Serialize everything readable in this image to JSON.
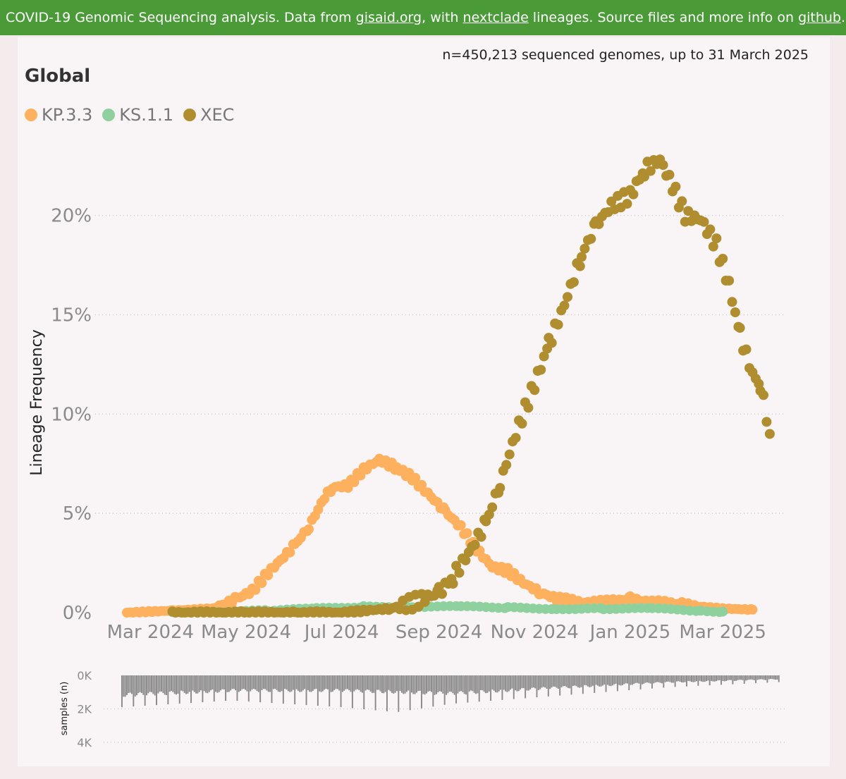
{
  "banner": {
    "prefix": "COVID-19 Genomic Sequencing analysis. Data from ",
    "link1": "gisaid.org",
    "mid1": ", with ",
    "link2": "nextclade",
    "mid2": " lineages. Source files and more info on ",
    "link3": "github",
    "suffix": "."
  },
  "subtitle": "n=450,213 sequenced genomes, up to 31 March 2025",
  "region": "Global",
  "colors": {
    "kp33": "#fdb05e",
    "ks11": "#8fd19e",
    "xec": "#b08d2e",
    "bars": "#8a8a8a"
  },
  "chart_data": [
    {
      "type": "scatter",
      "title": "Global",
      "ylabel": "Lineage Frequency",
      "xlabel": "",
      "x_range": [
        "2024-02-15",
        "2025-04-05"
      ],
      "ylim": [
        0,
        24
      ],
      "y_ticks": [
        0,
        5,
        10,
        15,
        20
      ],
      "y_tick_labels": [
        "0%",
        "5%",
        "10%",
        "15%",
        "20%"
      ],
      "x_ticks": [
        "2024-03-01",
        "2024-05-01",
        "2024-07-01",
        "2024-09-01",
        "2024-11-01",
        "2025-01-01",
        "2025-03-01"
      ],
      "x_tick_labels": [
        "Mar 2024",
        "May 2024",
        "Jul 2024",
        "Sep 2024",
        "Nov 2024",
        "Jan 2025",
        "Mar 2025"
      ],
      "legend_position": "top-left",
      "series": [
        {
          "name": "KP.3.3",
          "color": "#fdb05e",
          "points": [
            [
              "2024-02-15",
              0.0
            ],
            [
              "2024-03-15",
              0.1
            ],
            [
              "2024-04-10",
              0.2
            ],
            [
              "2024-04-25",
              0.7
            ],
            [
              "2024-05-05",
              1.1
            ],
            [
              "2024-05-15",
              2.0
            ],
            [
              "2024-05-25",
              2.8
            ],
            [
              "2024-06-01",
              3.4
            ],
            [
              "2024-06-10",
              4.3
            ],
            [
              "2024-06-20",
              5.8
            ],
            [
              "2024-06-25",
              6.3
            ],
            [
              "2024-07-05",
              6.4
            ],
            [
              "2024-07-15",
              7.2
            ],
            [
              "2024-07-25",
              7.7
            ],
            [
              "2024-08-05",
              7.3
            ],
            [
              "2024-08-15",
              6.8
            ],
            [
              "2024-08-25",
              6.0
            ],
            [
              "2024-09-05",
              5.1
            ],
            [
              "2024-09-15",
              4.3
            ],
            [
              "2024-09-25",
              3.2
            ],
            [
              "2024-10-05",
              2.3
            ],
            [
              "2024-10-15",
              2.1
            ],
            [
              "2024-10-25",
              1.5
            ],
            [
              "2024-11-05",
              1.0
            ],
            [
              "2024-11-15",
              0.7
            ],
            [
              "2024-12-01",
              0.5
            ],
            [
              "2024-12-15",
              0.5
            ],
            [
              "2025-01-01",
              0.7
            ],
            [
              "2025-01-15",
              0.5
            ],
            [
              "2025-02-01",
              0.4
            ],
            [
              "2025-02-15",
              0.3
            ],
            [
              "2025-03-01",
              0.2
            ],
            [
              "2025-03-20",
              0.15
            ]
          ]
        },
        {
          "name": "KS.1.1",
          "color": "#8fd19e",
          "points": [
            [
              "2024-03-15",
              0.0
            ],
            [
              "2024-04-15",
              0.05
            ],
            [
              "2024-05-15",
              0.1
            ],
            [
              "2024-06-15",
              0.2
            ],
            [
              "2024-07-15",
              0.3
            ],
            [
              "2024-08-15",
              0.3
            ],
            [
              "2024-09-15",
              0.3
            ],
            [
              "2024-10-15",
              0.25
            ],
            [
              "2024-11-15",
              0.2
            ],
            [
              "2024-12-15",
              0.2
            ],
            [
              "2025-01-15",
              0.2
            ],
            [
              "2025-02-15",
              0.1
            ],
            [
              "2025-03-01",
              0.05
            ]
          ]
        },
        {
          "name": "XEC",
          "color": "#b08d2e",
          "points": [
            [
              "2024-03-15",
              0.0
            ],
            [
              "2024-05-01",
              0.0
            ],
            [
              "2024-06-01",
              0.0
            ],
            [
              "2024-07-01",
              0.0
            ],
            [
              "2024-08-01",
              0.2
            ],
            [
              "2024-08-15",
              0.5
            ],
            [
              "2024-09-01",
              1.0
            ],
            [
              "2024-09-10",
              1.8
            ],
            [
              "2024-09-20",
              3.0
            ],
            [
              "2024-10-01",
              4.5
            ],
            [
              "2024-10-10",
              6.5
            ],
            [
              "2024-10-20",
              9.0
            ],
            [
              "2024-11-01",
              11.5
            ],
            [
              "2024-11-10",
              13.5
            ],
            [
              "2024-11-20",
              15.5
            ],
            [
              "2024-12-01",
              18.0
            ],
            [
              "2024-12-10",
              19.5
            ],
            [
              "2024-12-20",
              20.5
            ],
            [
              "2025-01-01",
              21.0
            ],
            [
              "2025-01-10",
              22.3
            ],
            [
              "2025-01-20",
              22.8
            ],
            [
              "2025-01-28",
              21.5
            ],
            [
              "2025-02-05",
              20.0
            ],
            [
              "2025-02-15",
              19.8
            ],
            [
              "2025-02-25",
              18.5
            ],
            [
              "2025-03-05",
              16.5
            ],
            [
              "2025-03-12",
              14.0
            ],
            [
              "2025-03-20",
              12.0
            ],
            [
              "2025-03-25",
              11.5
            ],
            [
              "2025-03-31",
              9.0
            ]
          ]
        }
      ]
    },
    {
      "type": "bar",
      "title": "",
      "ylabel": "samples (n)",
      "xlabel": "",
      "ylim": [
        0,
        4000
      ],
      "y_ticks": [
        0,
        2000,
        4000
      ],
      "y_tick_labels": [
        "0K",
        "2K",
        "4K"
      ],
      "orientation": "downward",
      "series": [
        {
          "name": "samples",
          "color": "#8a8a8a",
          "daily_baseline": [
            [
              0,
              1300
            ],
            [
              60,
              1000
            ],
            [
              120,
              1000
            ],
            [
              180,
              1200
            ],
            [
              240,
              800
            ],
            [
              300,
              450
            ],
            [
              360,
              250
            ]
          ],
          "weekly_peaks": [
            [
              0,
              1900
            ],
            [
              60,
              1500
            ],
            [
              120,
              1900
            ],
            [
              150,
              2200
            ],
            [
              180,
              1700
            ],
            [
              240,
              1200
            ],
            [
              300,
              700
            ],
            [
              360,
              400
            ]
          ]
        }
      ]
    }
  ]
}
